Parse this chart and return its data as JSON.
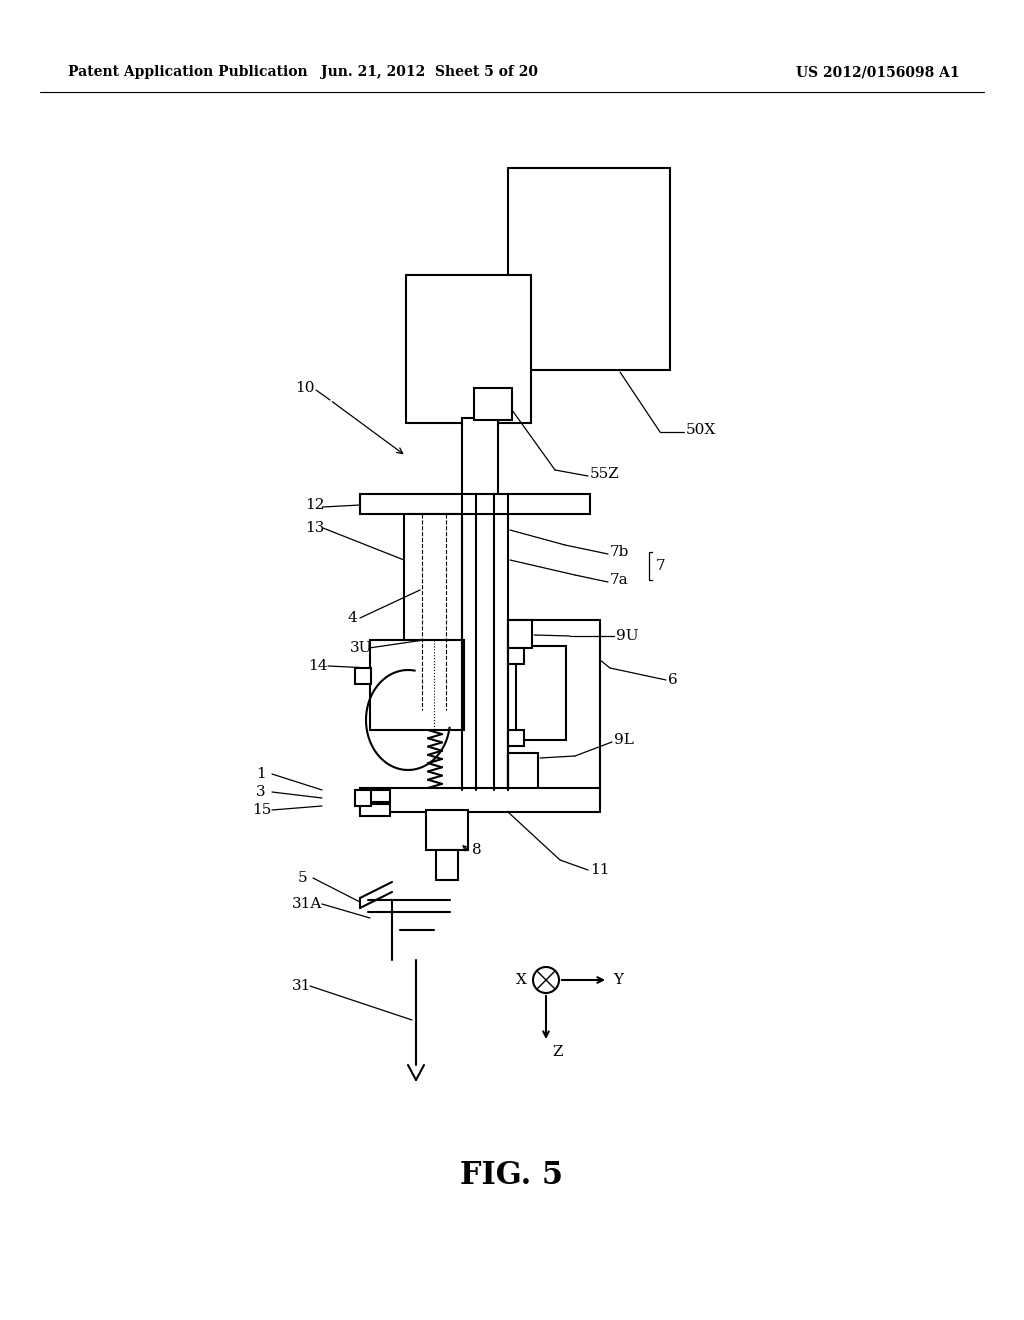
{
  "bg_color": "#ffffff",
  "lc": "#000000",
  "header_left": "Patent Application Publication",
  "header_center": "Jun. 21, 2012  Sheet 5 of 20",
  "header_right": "US 2012/0156098 A1",
  "figure_label": "FIG. 5",
  "lw": 1.5
}
